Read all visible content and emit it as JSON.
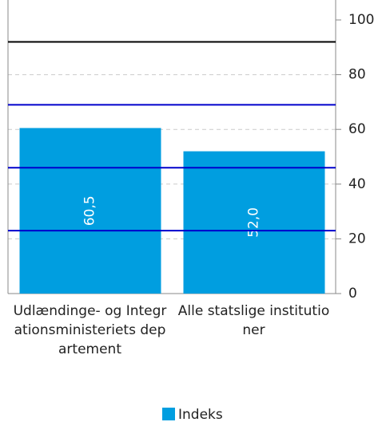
{
  "chart_data": {
    "type": "bar",
    "categories": [
      "Udlændinge- og Integrationsministeriets departement",
      "Alle statslige institutioner"
    ],
    "series": [
      {
        "name": "Indeks",
        "color": "#009ee0",
        "values": [
          60.5,
          52.0
        ],
        "value_labels": [
          "60,5",
          "52,0"
        ]
      }
    ],
    "ylim": [
      0,
      100
    ],
    "yticks": [
      0,
      20,
      40,
      60,
      80,
      100
    ],
    "grid": true,
    "reference_lines": [
      {
        "value": 92,
        "color": "#000000"
      },
      {
        "value": 69,
        "color": "#0000cc"
      },
      {
        "value": 46,
        "color": "#0000cc"
      },
      {
        "value": 23,
        "color": "#0000cc"
      }
    ],
    "legend": "bottom"
  }
}
